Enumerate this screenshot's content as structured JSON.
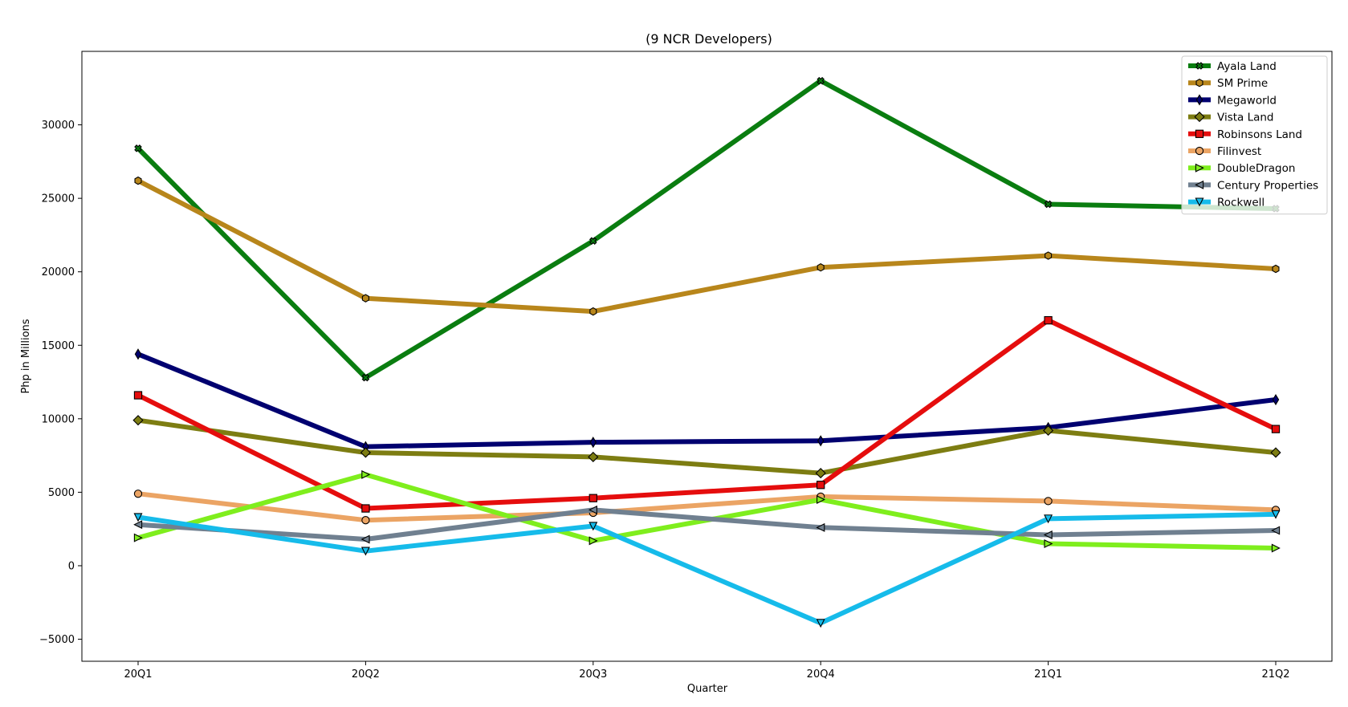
{
  "chart_data": {
    "type": "line",
    "title": "(9 NCR Developers)",
    "xlabel": "Quarter",
    "ylabel": "Php in Millions",
    "categories": [
      "20Q1",
      "20Q2",
      "20Q3",
      "20Q4",
      "21Q1",
      "21Q2"
    ],
    "ylim": [
      -6500,
      35000
    ],
    "yticks": [
      -5000,
      0,
      5000,
      10000,
      15000,
      20000,
      25000,
      30000
    ],
    "grid": false,
    "legend_position": "top-right",
    "series": [
      {
        "name": "Ayala Land",
        "color": "#0a7d10",
        "marker": "x-filled",
        "values": [
          28400,
          12800,
          22100,
          33000,
          24600,
          24300
        ]
      },
      {
        "name": "SM Prime",
        "color": "#b8861b",
        "marker": "hexagon",
        "values": [
          26200,
          18200,
          17300,
          20300,
          21100,
          20200
        ]
      },
      {
        "name": "Megaworld",
        "color": "#000070",
        "marker": "thin-diamond",
        "values": [
          14400,
          8100,
          8400,
          8500,
          9400,
          11300
        ]
      },
      {
        "name": "Vista Land",
        "color": "#7d7d12",
        "marker": "diamond",
        "values": [
          9900,
          7700,
          7400,
          6300,
          9200,
          7700
        ]
      },
      {
        "name": "Robinsons Land",
        "color": "#e50d0d",
        "marker": "square",
        "values": [
          11600,
          3900,
          4600,
          5500,
          16700,
          9300
        ]
      },
      {
        "name": "Filinvest",
        "color": "#eba464",
        "marker": "circle",
        "values": [
          4900,
          3100,
          3600,
          4700,
          4400,
          3800
        ]
      },
      {
        "name": "DoubleDragon",
        "color": "#7fee1d",
        "marker": "triangle-right",
        "values": [
          1900,
          6200,
          1700,
          4500,
          1500,
          1200
        ]
      },
      {
        "name": "Century Properties",
        "color": "#708090",
        "marker": "triangle-left",
        "values": [
          2800,
          1800,
          3800,
          2600,
          2100,
          2400
        ]
      },
      {
        "name": "Rockwell",
        "color": "#16bbea",
        "marker": "triangle-down",
        "values": [
          3300,
          1000,
          2700,
          -3900,
          3200,
          3500
        ]
      }
    ]
  }
}
